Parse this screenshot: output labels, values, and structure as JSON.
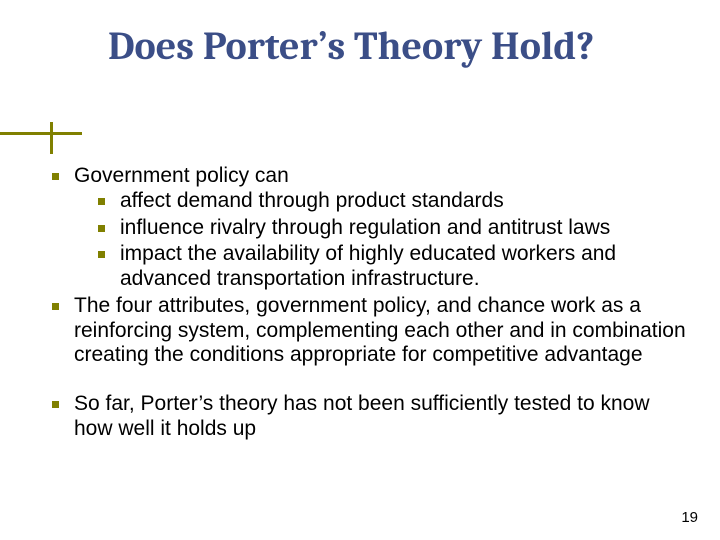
{
  "slide": {
    "title": "Does Porter’s Theory Hold?",
    "title_color": "#3b4e87",
    "title_fontsize": 40,
    "accent_color": "#808000",
    "body_fontsize": 21,
    "body_color": "#000000",
    "background_color": "#ffffff",
    "bullets": {
      "b0": "Government policy can",
      "b0_0": "affect demand through product standards",
      "b0_1": "influence rivalry through regulation and antitrust laws",
      "b0_2": "impact the availability of highly educated workers and advanced transportation infrastructure.",
      "b1": "The four attributes, government policy, and chance work as a reinforcing system, complementing each other and in combination creating the conditions appropriate for competitive advantage",
      "b2": "So far, Porter’s theory has not been sufficiently tested to know how well it holds up"
    },
    "page_number": "19"
  }
}
